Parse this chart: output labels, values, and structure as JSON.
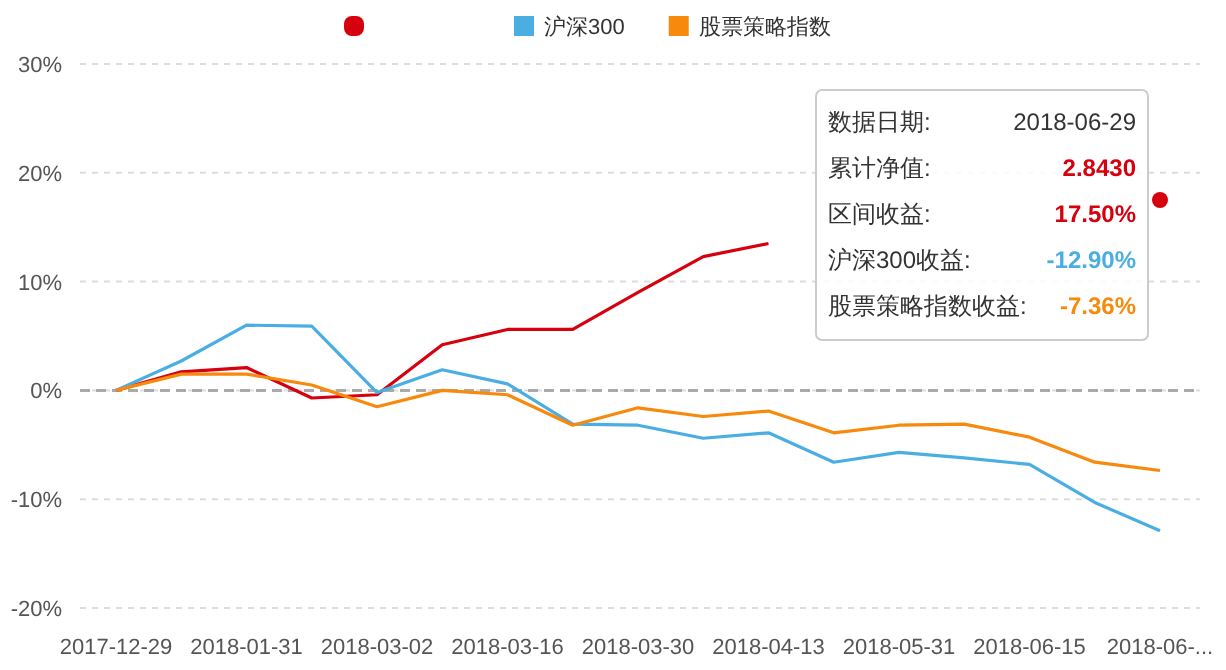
{
  "chart_data": {
    "type": "line",
    "categories": [
      "2017-12-29",
      null,
      "2018-01-31",
      null,
      "2018-03-02",
      null,
      "2018-03-16",
      null,
      "2018-03-30",
      null,
      "2018-04-13",
      null,
      "2018-05-31",
      null,
      "2018-06-15",
      null,
      "2018-06-..."
    ],
    "series": [
      {
        "color": "#d7000f",
        "values": [
          0,
          1.7,
          2.1,
          -0.7,
          -0.4,
          4.2,
          5.6,
          5.6,
          9.0,
          12.3,
          13.5,
          null,
          null,
          null,
          null,
          null,
          17.5
        ]
      },
      {
        "name": "沪深300",
        "color": "#4aaee3",
        "values": [
          0,
          2.7,
          6.0,
          5.9,
          -0.2,
          1.9,
          0.6,
          -3.1,
          -3.2,
          -4.4,
          -3.9,
          -6.6,
          -5.7,
          -6.2,
          -6.8,
          -10.3,
          -12.9
        ]
      },
      {
        "name": "股票策略指数",
        "color": "#f7890c",
        "values": [
          0,
          1.5,
          1.5,
          0.5,
          -1.5,
          0,
          -0.4,
          -3.2,
          -1.6,
          -2.4,
          -1.9,
          -3.9,
          -3.2,
          -3.1,
          -4.3,
          -6.6,
          -7.36
        ]
      }
    ],
    "ylim": [
      -20,
      30
    ],
    "yticks": [
      {
        "value": -20,
        "label": "-20%"
      },
      {
        "value": -10,
        "label": "-10%"
      },
      {
        "value": 0,
        "label": "0%"
      },
      {
        "value": 10,
        "label": "10%"
      },
      {
        "value": 20,
        "label": "20%"
      },
      {
        "value": 30,
        "label": "30%"
      }
    ],
    "grid": "y",
    "ref_lines": [
      {
        "axis": "y",
        "value": 0,
        "color": "#aaaaaa",
        "line_style": "dashed"
      }
    ],
    "legend": "top",
    "marker": "none",
    "line_style": "solid",
    "annotations": [
      "数据日期:",
      "2018-06-29",
      "累计净值:",
      "2.8430",
      "区间收益:",
      "17.50%",
      "沪深300收益:",
      "-12.90%",
      "股票策略指数收益:",
      "-7.36%"
    ]
  }
}
